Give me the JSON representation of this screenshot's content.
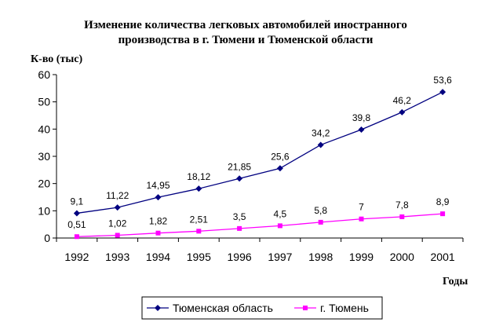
{
  "chart_data": {
    "type": "line",
    "title": [
      "Изменение количества легковых автомобилей иностранного",
      "производства в г. Тюмени и Тюменской области"
    ],
    "ylabel": "К-во (тыс)",
    "xlabel": "Годы",
    "categories": [
      "1992",
      "1993",
      "1994",
      "1995",
      "1996",
      "1997",
      "1998",
      "1999",
      "2000",
      "2001"
    ],
    "ylim": [
      0,
      60
    ],
    "yticks": [
      "0",
      "10",
      "20",
      "30",
      "40",
      "50",
      "60"
    ],
    "grid": false,
    "legend_position": "bottom",
    "series": [
      {
        "name": "Тюменская область",
        "values": [
          9.1,
          11.22,
          14.95,
          18.12,
          21.85,
          25.6,
          34.2,
          39.8,
          46.2,
          53.6
        ],
        "labels": [
          "9,1",
          "11,22",
          "14,95",
          "18,12",
          "21,85",
          "25,6",
          "34,2",
          "39,8",
          "46,2",
          "53,6"
        ],
        "color": "#000080",
        "marker": "diamond"
      },
      {
        "name": "г. Тюмень",
        "values": [
          0.51,
          1.02,
          1.82,
          2.51,
          3.5,
          4.5,
          5.8,
          7,
          7.8,
          8.9
        ],
        "labels": [
          "0,51",
          "1,02",
          "1,82",
          "2,51",
          "3,5",
          "4,5",
          "5,8",
          "7",
          "7,8",
          "8,9"
        ],
        "color": "#ff00ff",
        "marker": "square"
      }
    ]
  }
}
